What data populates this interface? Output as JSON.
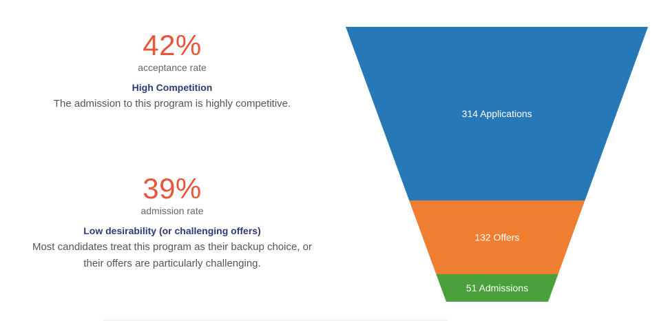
{
  "stats": [
    {
      "value": "42%",
      "unit": "acceptance rate",
      "heading": "High Competition",
      "description": "The admission to this program is highly competitive."
    },
    {
      "value": "39%",
      "unit": "admission rate",
      "heading": "Low desirability (or challenging offers)",
      "description": "Most candidates treat this program as their backup choice, or their offers are particularly challenging."
    }
  ],
  "colors": {
    "stat_value": "#e8553b",
    "heading": "#2e3a74"
  },
  "chart_data": {
    "type": "funnel",
    "stages": [
      {
        "label": "314 Applications",
        "value": 314,
        "color": "#2778b6"
      },
      {
        "label": "132 Offers",
        "value": 132,
        "color": "#f07e30"
      },
      {
        "label": "51 Admissions",
        "value": 51,
        "color": "#4aa03a"
      }
    ]
  }
}
